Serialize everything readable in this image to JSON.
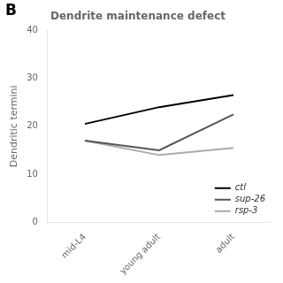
{
  "chart_data": {
    "type": "line",
    "title": "Dendrite maintenance defect",
    "annotations": [
      "B"
    ],
    "ylabel": "Dendritic termini",
    "categories": [
      "mid-L4",
      "young adult",
      "adult"
    ],
    "series": [
      {
        "name": "ctl",
        "color": "#000000",
        "values": [
          20.5,
          24.0,
          26.5
        ]
      },
      {
        "name": "sup-26",
        "color": "#555555",
        "values": [
          17.0,
          15.0,
          22.5
        ]
      },
      {
        "name": "rsp-3",
        "color": "#aaaaaa",
        "values": [
          17.0,
          14.0,
          15.5
        ]
      }
    ],
    "ylim": [
      0,
      40
    ],
    "yticks": [
      0,
      10,
      20,
      30,
      40
    ],
    "grid": false,
    "legend": "lower right"
  }
}
